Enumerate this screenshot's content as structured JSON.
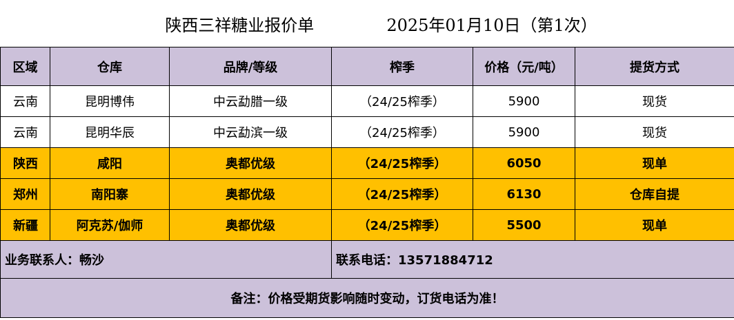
{
  "title": {
    "company": "陕西三祥糖业报价单",
    "date": "2025年01月10日（第1次）"
  },
  "headers": {
    "region": "区域",
    "warehouse": "仓库",
    "brand": "品牌/等级",
    "season": "榨季",
    "price": "价格（元/吨）",
    "pickup": "提货方式"
  },
  "rows": [
    {
      "region": "云南",
      "warehouse": "昆明博伟",
      "brand": "中云勐腊一级",
      "season": "（24/25榨季）",
      "price": "5900",
      "pickup": "现货",
      "highlight": false
    },
    {
      "region": "云南",
      "warehouse": "昆明华辰",
      "brand": "中云勐滨一级",
      "season": "（24/25榨季）",
      "price": "5900",
      "pickup": "现货",
      "highlight": false
    },
    {
      "region": "陕西",
      "warehouse": "咸阳",
      "brand": "奥都优级",
      "season": "（24/25榨季）",
      "price": "6050",
      "pickup": "现单",
      "highlight": true
    },
    {
      "region": "郑州",
      "warehouse": "南阳寨",
      "brand": "奥都优级",
      "season": "（24/25榨季）",
      "price": "6130",
      "pickup": "仓库自提",
      "highlight": true
    },
    {
      "region": "新疆",
      "warehouse": "阿克苏/伽师",
      "brand": "奥都优级",
      "season": "（24/25榨季）",
      "price": "5500",
      "pickup": "现单",
      "highlight": true
    }
  ],
  "contact": {
    "person": "业务联系人：畅沙",
    "phone": "联系电话：13571884712"
  },
  "note": "备注：价格受期货影响随时变动，订货电话为准！",
  "colors": {
    "header_bg": "#ccc1da",
    "highlight_bg": "#ffc000"
  }
}
